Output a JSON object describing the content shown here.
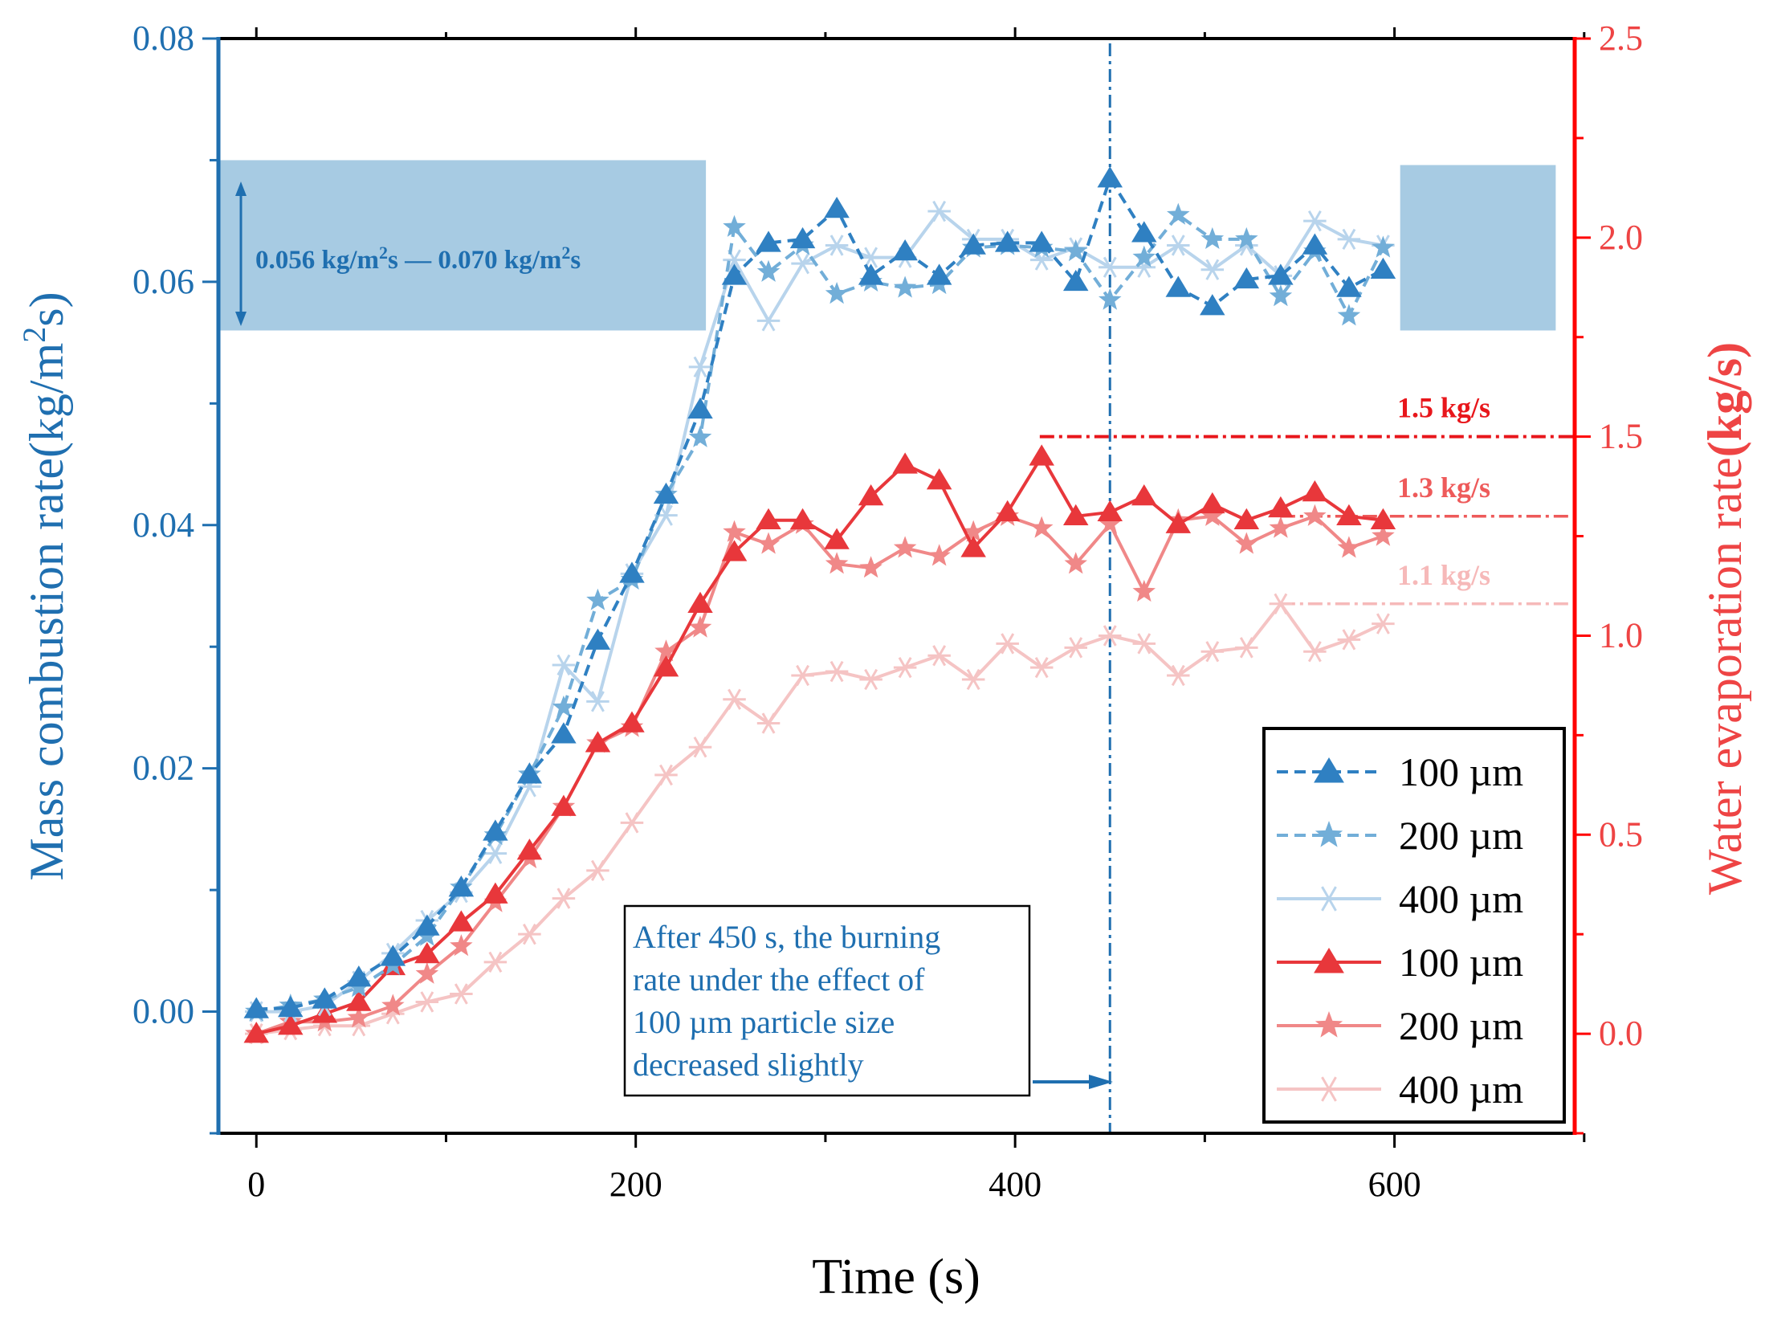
{
  "chart_data": {
    "type": "line",
    "xlabel": "Time (s)",
    "ylabel_left": "Mass combustion rate(kg/m²s)",
    "ylabel_left_parts": [
      "Mass combustion rate(kg/m",
      "2",
      "s)"
    ],
    "ylabel_right": "Water evaporation rate(kg/s)",
    "ylabel_right_parts": [
      "Water evaporation rate",
      "(kg/s)"
    ],
    "xlim": [
      -20,
      695
    ],
    "ylim_left": [
      -0.01,
      0.08
    ],
    "ylim_right": [
      -0.25,
      2.5
    ],
    "xticks": [
      0,
      200,
      400,
      600
    ],
    "xtick_labels": [
      "0",
      "200",
      "400",
      "600"
    ],
    "yticks_left": [
      0.0,
      0.02,
      0.04,
      0.06,
      0.08
    ],
    "ytick_labels_left": [
      "0.00",
      "0.02",
      "0.04",
      "0.06",
      "0.08"
    ],
    "yticks_right": [
      0.0,
      0.5,
      1.0,
      1.5,
      2.0,
      2.5
    ],
    "ytick_labels_right": [
      "0.0",
      "0.5",
      "1.0",
      "1.5",
      "2.0",
      "2.5"
    ],
    "legend_position": "bottom-right",
    "colors": {
      "left_axis": "#1f6fb0",
      "right_axis": "#ff0000",
      "band": "#a7cbe3"
    },
    "series": [
      {
        "name": "100 µm",
        "axis": "left",
        "marker": "triangle",
        "color": "#2f80c2",
        "dash": "14,8",
        "x": [
          0,
          18,
          36,
          54,
          72,
          90,
          108,
          126,
          144,
          162,
          180,
          198,
          216,
          234,
          252,
          270,
          288,
          306,
          324,
          342,
          360,
          378,
          396,
          414,
          432,
          450,
          468,
          486,
          504,
          522,
          540,
          558,
          576,
          594
        ],
        "values": [
          0.0002,
          0.0003,
          0.001,
          0.0028,
          0.0045,
          0.007,
          0.0102,
          0.0148,
          0.0195,
          0.0228,
          0.0305,
          0.036,
          0.0425,
          0.0495,
          0.0605,
          0.0632,
          0.0635,
          0.066,
          0.0605,
          0.0625,
          0.0605,
          0.063,
          0.0632,
          0.0632,
          0.06,
          0.0685,
          0.064,
          0.0595,
          0.058,
          0.0602,
          0.0605,
          0.063,
          0.0595,
          0.061
        ]
      },
      {
        "name": "200 µm",
        "axis": "left",
        "marker": "star",
        "color": "#72aed8",
        "dash": "14,8",
        "x": [
          0,
          18,
          36,
          54,
          72,
          90,
          108,
          126,
          144,
          162,
          180,
          198,
          216,
          234,
          252,
          270,
          288,
          306,
          324,
          342,
          360,
          378,
          396,
          414,
          432,
          450,
          468,
          486,
          504,
          522,
          540,
          558,
          576,
          594
        ],
        "values": [
          0.0,
          0.0005,
          0.001,
          0.002,
          0.0038,
          0.0062,
          0.0102,
          0.0145,
          0.0195,
          0.025,
          0.0338,
          0.0355,
          0.0425,
          0.0472,
          0.0645,
          0.0608,
          0.063,
          0.059,
          0.06,
          0.0595,
          0.0598,
          0.0628,
          0.063,
          0.0628,
          0.0625,
          0.0585,
          0.062,
          0.0655,
          0.0635,
          0.0635,
          0.0588,
          0.0625,
          0.0572,
          0.0628
        ]
      },
      {
        "name": "400 µm",
        "axis": "left",
        "marker": "asterisk",
        "color": "#b8d4ec",
        "dash": "",
        "x": [
          0,
          18,
          36,
          54,
          72,
          90,
          108,
          126,
          144,
          162,
          180,
          198,
          216,
          234,
          252,
          270,
          288,
          306,
          324,
          342,
          360,
          378,
          396,
          414,
          432,
          450,
          468,
          486,
          504,
          522,
          540,
          558,
          576,
          594
        ],
        "values": [
          0.0,
          0.0,
          0.0005,
          0.0025,
          0.0048,
          0.0075,
          0.0098,
          0.013,
          0.0185,
          0.0285,
          0.0255,
          0.036,
          0.0408,
          0.053,
          0.0618,
          0.0568,
          0.0615,
          0.063,
          0.062,
          0.062,
          0.0658,
          0.0635,
          0.0635,
          0.0618,
          0.0628,
          0.0612,
          0.0612,
          0.063,
          0.061,
          0.063,
          0.0605,
          0.065,
          0.0635,
          0.063
        ]
      },
      {
        "name": "100 µm",
        "axis": "right",
        "marker": "triangle",
        "color": "#e8373b",
        "dash": "",
        "x": [
          0,
          18,
          36,
          54,
          72,
          90,
          108,
          126,
          144,
          162,
          180,
          198,
          216,
          234,
          252,
          270,
          288,
          306,
          324,
          342,
          360,
          378,
          396,
          414,
          432,
          450,
          468,
          486,
          504,
          522,
          540,
          558,
          576,
          594
        ],
        "values": [
          0.0,
          0.02,
          0.05,
          0.08,
          0.17,
          0.2,
          0.28,
          0.35,
          0.46,
          0.57,
          0.73,
          0.78,
          0.92,
          1.08,
          1.21,
          1.29,
          1.29,
          1.24,
          1.35,
          1.43,
          1.39,
          1.22,
          1.31,
          1.45,
          1.3,
          1.31,
          1.35,
          1.28,
          1.33,
          1.29,
          1.32,
          1.36,
          1.3,
          1.29
        ]
      },
      {
        "name": "200 µm",
        "axis": "right",
        "marker": "star",
        "color": "#f08888",
        "dash": "",
        "x": [
          0,
          18,
          36,
          54,
          72,
          90,
          108,
          126,
          144,
          162,
          180,
          198,
          216,
          234,
          252,
          270,
          288,
          306,
          324,
          342,
          360,
          378,
          396,
          414,
          432,
          450,
          468,
          486,
          504,
          522,
          540,
          558,
          576,
          594
        ],
        "values": [
          0.0,
          0.03,
          0.03,
          0.04,
          0.07,
          0.15,
          0.22,
          0.33,
          0.44,
          0.57,
          0.73,
          0.77,
          0.96,
          1.02,
          1.26,
          1.23,
          1.28,
          1.18,
          1.17,
          1.22,
          1.2,
          1.26,
          1.3,
          1.27,
          1.18,
          1.28,
          1.11,
          1.29,
          1.3,
          1.23,
          1.27,
          1.3,
          1.22,
          1.25
        ]
      },
      {
        "name": "400 µm",
        "axis": "right",
        "marker": "asterisk",
        "color": "#f5c4c4",
        "dash": "",
        "x": [
          0,
          18,
          36,
          54,
          72,
          90,
          108,
          126,
          144,
          162,
          180,
          198,
          216,
          234,
          252,
          270,
          288,
          306,
          324,
          342,
          360,
          378,
          396,
          414,
          432,
          450,
          468,
          486,
          504,
          522,
          540,
          558,
          576,
          594
        ],
        "values": [
          0.0,
          0.01,
          0.02,
          0.02,
          0.05,
          0.08,
          0.1,
          0.18,
          0.25,
          0.34,
          0.41,
          0.53,
          0.65,
          0.72,
          0.84,
          0.78,
          0.9,
          0.91,
          0.89,
          0.92,
          0.95,
          0.89,
          0.98,
          0.92,
          0.97,
          1.0,
          0.98,
          0.9,
          0.96,
          0.97,
          1.08,
          0.96,
          0.99,
          1.03
        ]
      }
    ],
    "reference_lines": [
      {
        "label": "1.5 kg/s",
        "value": 1.5,
        "x_start": 413,
        "axis": "right",
        "color": "#e8161b",
        "width": 4
      },
      {
        "label": "1.3 kg/s",
        "value": 1.3,
        "x_start": 540,
        "axis": "right",
        "color": "#ee5a5a",
        "width": 3.5
      },
      {
        "label": "1.1 kg/s",
        "value": 1.08,
        "x_start": 540,
        "axis": "right",
        "color": "#f6b9b9",
        "width": 3.5
      }
    ],
    "vertical_line": {
      "x": 450,
      "color": "#1f6fb0"
    },
    "band": {
      "y_low": 0.056,
      "y_high": 0.07,
      "x_ranges": [
        [
          -20,
          237
        ],
        [
          603,
          685
        ]
      ],
      "x_high_right": 0.0696
    },
    "band_label": [
      "0.056 kg/m",
      "2",
      "s — 0.070 kg/m",
      "2",
      "s"
    ],
    "annotation": {
      "lines": [
        "After 450 s, the burning",
        "rate under the effect of",
        "100 µm particle size",
        "decreased slightly"
      ]
    }
  }
}
